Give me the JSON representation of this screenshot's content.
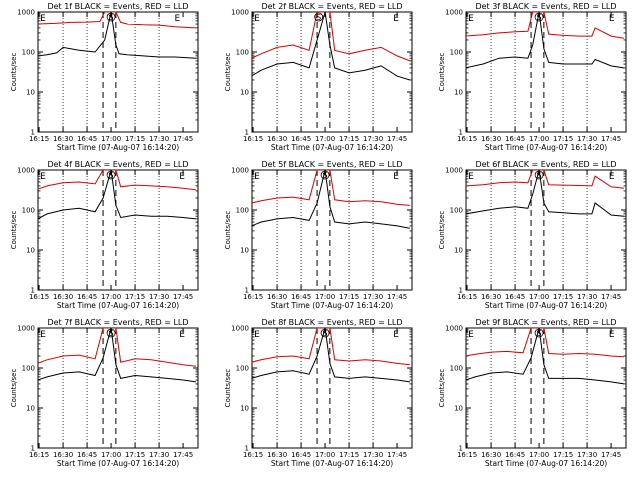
{
  "figure": {
    "background": "#ffffff",
    "events_color": "#000000",
    "lld_color": "#dd0000"
  },
  "common": {
    "ylabel": "Counts/sec",
    "xlabel": "Start Time (07-Aug-07 16:14:20)",
    "x_tick_labels": [
      "16:15",
      "16:30",
      "16:45",
      "17:00",
      "17:15",
      "17:30",
      "17:45"
    ],
    "y_tick_labels": [
      "1",
      "10",
      "100",
      "1000"
    ]
  },
  "chart_data": [
    {
      "type": "line",
      "title": "Det 1f BLACK = Events, RED = LLD",
      "xlabel": "Start Time (07-Aug-07 16:14:20)",
      "ylabel": "Counts/sec",
      "xlim": [
        "16:14:20",
        "17:54:20"
      ],
      "ylim": [
        1,
        1000
      ],
      "yscale": "log",
      "markers": [
        {
          "label": "E",
          "time": "16:15"
        },
        {
          "label": "S",
          "time": "17:00"
        },
        {
          "label": "E",
          "time": "17:39"
        }
      ],
      "dashed_lines": [
        "16:55",
        "17:03"
      ],
      "dotted_lines": [
        "16:30",
        "16:45",
        "17:15",
        "17:30"
      ],
      "series": [
        {
          "name": "LLD",
          "color": "#dd0000",
          "x": [
            "16:14",
            "16:25",
            "16:35",
            "16:45",
            "16:53",
            "16:56",
            "17:00",
            "17:03",
            "17:06",
            "17:10",
            "17:20",
            "17:30",
            "17:40",
            "17:53"
          ],
          "values": [
            500,
            520,
            550,
            560,
            580,
            1000,
            1000,
            1000,
            550,
            500,
            480,
            470,
            430,
            400
          ]
        },
        {
          "name": "Events",
          "color": "#000000",
          "x": [
            "16:14",
            "16:20",
            "16:26",
            "16:30",
            "16:40",
            "16:50",
            "16:56",
            "17:00",
            "17:03",
            "17:05",
            "17:10",
            "17:20",
            "17:30",
            "17:40",
            "17:53"
          ],
          "values": [
            80,
            85,
            95,
            130,
            110,
            100,
            200,
            1000,
            150,
            90,
            85,
            80,
            75,
            75,
            70
          ]
        }
      ]
    },
    {
      "type": "line",
      "title": "Det 2f BLACK = Events, RED = LLD",
      "xlabel": "Start Time (07-Aug-07 16:14:20)",
      "ylabel": "Counts/sec",
      "xlim": [
        "16:14:20",
        "17:54:20"
      ],
      "ylim": [
        1,
        1000
      ],
      "yscale": "log",
      "markers": [
        {
          "label": "E",
          "time": "16:15"
        },
        {
          "label": "S",
          "time": "16:56"
        },
        {
          "label": "E",
          "time": "17:42"
        }
      ],
      "dashed_lines": [
        "16:55",
        "17:03"
      ],
      "dotted_lines": [
        "16:30",
        "16:45",
        "17:15",
        "17:30"
      ],
      "series": [
        {
          "name": "LLD",
          "color": "#dd0000",
          "x": [
            "16:14",
            "16:20",
            "16:30",
            "16:40",
            "16:50",
            "16:55",
            "17:00",
            "17:03",
            "17:06",
            "17:15",
            "17:25",
            "17:35",
            "17:45",
            "17:53"
          ],
          "values": [
            70,
            90,
            130,
            150,
            110,
            1000,
            1000,
            1000,
            110,
            90,
            110,
            130,
            80,
            60
          ]
        },
        {
          "name": "Events",
          "color": "#000000",
          "x": [
            "16:14",
            "16:20",
            "16:30",
            "16:40",
            "16:50",
            "16:55",
            "17:00",
            "17:03",
            "17:06",
            "17:15",
            "17:25",
            "17:35",
            "17:45",
            "17:53"
          ],
          "values": [
            25,
            35,
            50,
            55,
            40,
            200,
            1000,
            150,
            40,
            30,
            35,
            45,
            25,
            20
          ]
        }
      ]
    },
    {
      "type": "line",
      "title": "Det 3f BLACK = Events, RED = LLD",
      "xlabel": "Start Time (07-Aug-07 16:14:20)",
      "ylabel": "Counts/sec",
      "xlim": [
        "16:14:20",
        "17:54:20"
      ],
      "ylim": [
        1,
        1000
      ],
      "yscale": "log",
      "markers": [
        {
          "label": "E",
          "time": "16:15"
        },
        {
          "label": "S",
          "time": "17:00"
        },
        {
          "label": "E",
          "time": "17:43"
        }
      ],
      "dashed_lines": [
        "16:55",
        "17:03"
      ],
      "dotted_lines": [
        "16:30",
        "16:45",
        "17:15",
        "17:30"
      ],
      "series": [
        {
          "name": "LLD",
          "color": "#dd0000",
          "x": [
            "16:14",
            "16:25",
            "16:35",
            "16:45",
            "16:53",
            "16:56",
            "17:00",
            "17:03",
            "17:06",
            "17:15",
            "17:25",
            "17:33",
            "17:35",
            "17:45",
            "17:53"
          ],
          "values": [
            250,
            270,
            300,
            320,
            330,
            1000,
            1000,
            1000,
            280,
            260,
            250,
            250,
            400,
            250,
            220
          ]
        },
        {
          "name": "Events",
          "color": "#000000",
          "x": [
            "16:14",
            "16:25",
            "16:35",
            "16:45",
            "16:53",
            "16:56",
            "17:00",
            "17:03",
            "17:06",
            "17:15",
            "17:25",
            "17:33",
            "17:35",
            "17:45",
            "17:53"
          ],
          "values": [
            40,
            50,
            70,
            75,
            70,
            150,
            1000,
            120,
            55,
            50,
            50,
            50,
            65,
            45,
            40
          ]
        }
      ]
    },
    {
      "type": "line",
      "title": "Det 4f BLACK = Events, RED = LLD",
      "xlabel": "Start Time (07-Aug-07 16:14:20)",
      "ylabel": "Counts/sec",
      "xlim": [
        "16:14:20",
        "17:54:20"
      ],
      "ylim": [
        1,
        1000
      ],
      "yscale": "log",
      "markers": [
        {
          "label": "E",
          "time": "16:15"
        },
        {
          "label": "S",
          "time": "17:00"
        },
        {
          "label": "E",
          "time": "17:42"
        }
      ],
      "dashed_lines": [
        "16:55",
        "17:03"
      ],
      "dotted_lines": [
        "16:30",
        "16:45",
        "17:15",
        "17:30"
      ],
      "series": [
        {
          "name": "LLD",
          "color": "#dd0000",
          "x": [
            "16:14",
            "16:20",
            "16:30",
            "16:40",
            "16:50",
            "16:55",
            "17:00",
            "17:03",
            "17:06",
            "17:15",
            "17:25",
            "17:35",
            "17:45",
            "17:53"
          ],
          "values": [
            330,
            400,
            480,
            500,
            450,
            1000,
            1000,
            1000,
            380,
            420,
            400,
            380,
            350,
            320
          ]
        },
        {
          "name": "Events",
          "color": "#000000",
          "x": [
            "16:14",
            "16:20",
            "16:30",
            "16:40",
            "16:50",
            "16:55",
            "17:00",
            "17:03",
            "17:06",
            "17:15",
            "17:25",
            "17:35",
            "17:45",
            "17:53"
          ],
          "values": [
            60,
            80,
            100,
            110,
            90,
            200,
            1000,
            130,
            65,
            75,
            70,
            70,
            65,
            60
          ]
        }
      ]
    },
    {
      "type": "line",
      "title": "Det 5f BLACK = Events, RED = LLD",
      "xlabel": "Start Time (07-Aug-07 16:14:20)",
      "ylabel": "Counts/sec",
      "xlim": [
        "16:14:20",
        "17:54:20"
      ],
      "ylim": [
        1,
        1000
      ],
      "yscale": "log",
      "markers": [
        {
          "label": "E",
          "time": "16:15"
        },
        {
          "label": "S",
          "time": "17:00"
        },
        {
          "label": "E",
          "time": "17:42"
        }
      ],
      "dashed_lines": [
        "16:55",
        "17:03"
      ],
      "dotted_lines": [
        "16:30",
        "16:45",
        "17:15",
        "17:30"
      ],
      "series": [
        {
          "name": "LLD",
          "color": "#dd0000",
          "x": [
            "16:14",
            "16:20",
            "16:30",
            "16:40",
            "16:50",
            "16:55",
            "17:00",
            "17:03",
            "17:06",
            "17:15",
            "17:25",
            "17:35",
            "17:45",
            "17:53"
          ],
          "values": [
            150,
            170,
            200,
            210,
            180,
            1000,
            1000,
            1000,
            180,
            160,
            170,
            160,
            140,
            130
          ]
        },
        {
          "name": "Events",
          "color": "#000000",
          "x": [
            "16:14",
            "16:20",
            "16:30",
            "16:40",
            "16:50",
            "16:55",
            "17:00",
            "17:03",
            "17:06",
            "17:15",
            "17:25",
            "17:35",
            "17:45",
            "17:53"
          ],
          "values": [
            40,
            50,
            60,
            65,
            55,
            150,
            1000,
            120,
            50,
            45,
            50,
            45,
            40,
            35
          ]
        }
      ]
    },
    {
      "type": "line",
      "title": "Det 6f BLACK = Events, RED = LLD",
      "xlabel": "Start Time (07-Aug-07 16:14:20)",
      "ylabel": "Counts/sec",
      "xlim": [
        "16:14:20",
        "17:54:20"
      ],
      "ylim": [
        1,
        1000
      ],
      "yscale": "log",
      "markers": [
        {
          "label": "E",
          "time": "16:15"
        },
        {
          "label": "S",
          "time": "17:00"
        },
        {
          "label": "E",
          "time": "17:43"
        }
      ],
      "dashed_lines": [
        "16:55",
        "17:03"
      ],
      "dotted_lines": [
        "16:30",
        "16:45",
        "17:15",
        "17:30"
      ],
      "series": [
        {
          "name": "LLD",
          "color": "#dd0000",
          "x": [
            "16:14",
            "16:25",
            "16:35",
            "16:45",
            "16:53",
            "16:56",
            "17:00",
            "17:03",
            "17:06",
            "17:15",
            "17:25",
            "17:33",
            "17:35",
            "17:45",
            "17:53"
          ],
          "values": [
            400,
            430,
            480,
            500,
            480,
            1000,
            1000,
            1000,
            430,
            420,
            410,
            400,
            700,
            380,
            350
          ]
        },
        {
          "name": "Events",
          "color": "#000000",
          "x": [
            "16:14",
            "16:25",
            "16:35",
            "16:45",
            "16:53",
            "16:56",
            "17:00",
            "17:03",
            "17:06",
            "17:15",
            "17:25",
            "17:33",
            "17:35",
            "17:45",
            "17:53"
          ],
          "values": [
            80,
            95,
            110,
            120,
            110,
            250,
            1000,
            150,
            90,
            85,
            80,
            80,
            150,
            75,
            70
          ]
        }
      ]
    },
    {
      "type": "line",
      "title": "Det 7f BLACK = Events, RED = LLD",
      "xlabel": "Start Time (07-Aug-07 16:14:20)",
      "ylabel": "Counts/sec",
      "xlim": [
        "16:14:20",
        "17:54:20"
      ],
      "ylim": [
        1,
        1000
      ],
      "yscale": "log",
      "markers": [
        {
          "label": "E",
          "time": "16:15"
        },
        {
          "label": "S",
          "time": "17:00"
        },
        {
          "label": "E",
          "time": "17:42"
        }
      ],
      "dashed_lines": [
        "16:55",
        "17:03"
      ],
      "dotted_lines": [
        "16:30",
        "16:45",
        "17:15",
        "17:30"
      ],
      "series": [
        {
          "name": "LLD",
          "color": "#dd0000",
          "x": [
            "16:14",
            "16:20",
            "16:30",
            "16:40",
            "16:50",
            "16:55",
            "17:00",
            "17:03",
            "17:06",
            "17:15",
            "17:25",
            "17:35",
            "17:45",
            "17:53"
          ],
          "values": [
            130,
            160,
            200,
            210,
            170,
            1000,
            1000,
            1000,
            140,
            170,
            160,
            140,
            120,
            110
          ]
        },
        {
          "name": "Events",
          "color": "#000000",
          "x": [
            "16:14",
            "16:20",
            "16:30",
            "16:40",
            "16:50",
            "16:55",
            "17:00",
            "17:03",
            "17:06",
            "17:15",
            "17:25",
            "17:35",
            "17:45",
            "17:53"
          ],
          "values": [
            50,
            60,
            75,
            80,
            65,
            180,
            1000,
            120,
            55,
            65,
            60,
            55,
            50,
            45
          ]
        }
      ]
    },
    {
      "type": "line",
      "title": "Det 8f BLACK = Events, RED = LLD",
      "xlabel": "Start Time (07-Aug-07 16:14:20)",
      "ylabel": "Counts/sec",
      "xlim": [
        "16:14:20",
        "17:54:20"
      ],
      "ylim": [
        1,
        1000
      ],
      "yscale": "log",
      "markers": [
        {
          "label": "E",
          "time": "16:15"
        },
        {
          "label": "S",
          "time": "17:00"
        },
        {
          "label": "E",
          "time": "17:42"
        }
      ],
      "dashed_lines": [
        "16:55",
        "17:03"
      ],
      "dotted_lines": [
        "16:30",
        "16:45",
        "17:15",
        "17:30"
      ],
      "series": [
        {
          "name": "LLD",
          "color": "#dd0000",
          "x": [
            "16:14",
            "16:20",
            "16:30",
            "16:40",
            "16:50",
            "16:55",
            "17:00",
            "17:03",
            "17:06",
            "17:15",
            "17:25",
            "17:35",
            "17:45",
            "17:53"
          ],
          "values": [
            140,
            160,
            190,
            200,
            170,
            1000,
            1000,
            1000,
            160,
            150,
            160,
            150,
            130,
            120
          ]
        },
        {
          "name": "Events",
          "color": "#000000",
          "x": [
            "16:14",
            "16:20",
            "16:30",
            "16:40",
            "16:50",
            "16:55",
            "17:00",
            "17:03",
            "17:06",
            "17:15",
            "17:25",
            "17:35",
            "17:45",
            "17:53"
          ],
          "values": [
            55,
            65,
            80,
            85,
            70,
            200,
            1000,
            130,
            60,
            55,
            60,
            55,
            50,
            45
          ]
        }
      ]
    },
    {
      "type": "line",
      "title": "Det 9f BLACK = Events, RED = LLD",
      "xlabel": "Start Time (07-Aug-07 16:14:20)",
      "ylabel": "Counts/sec",
      "xlim": [
        "16:14:20",
        "17:54:20"
      ],
      "ylim": [
        1,
        1000
      ],
      "yscale": "log",
      "markers": [
        {
          "label": "E",
          "time": "16:15"
        },
        {
          "label": "S",
          "time": "17:00"
        },
        {
          "label": "E",
          "time": "17:43"
        }
      ],
      "dashed_lines": [
        "16:55",
        "17:03"
      ],
      "dotted_lines": [
        "16:30",
        "16:45",
        "17:15",
        "17:30"
      ],
      "series": [
        {
          "name": "LLD",
          "color": "#dd0000",
          "x": [
            "16:14",
            "16:20",
            "16:30",
            "16:40",
            "16:50",
            "16:55",
            "17:00",
            "17:03",
            "17:06",
            "17:15",
            "17:25",
            "17:35",
            "17:45",
            "17:53"
          ],
          "values": [
            200,
            220,
            250,
            260,
            240,
            1000,
            1000,
            1000,
            230,
            220,
            230,
            220,
            200,
            190
          ]
        },
        {
          "name": "Events",
          "color": "#000000",
          "x": [
            "16:14",
            "16:20",
            "16:30",
            "16:40",
            "16:50",
            "16:55",
            "17:00",
            "17:03",
            "17:06",
            "17:15",
            "17:25",
            "17:35",
            "17:45",
            "17:53"
          ],
          "values": [
            50,
            60,
            75,
            80,
            70,
            180,
            1000,
            120,
            55,
            55,
            55,
            50,
            45,
            40
          ]
        }
      ]
    }
  ]
}
